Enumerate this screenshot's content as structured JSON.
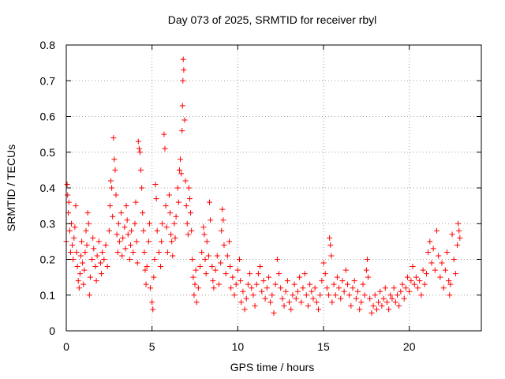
{
  "chart_data": {
    "type": "scatter",
    "title": "Day 073 of 2025, SRMTID for receiver rbyl",
    "xlabel": "GPS time / hours",
    "ylabel": "SRMTID / TECUs",
    "xlim": [
      0,
      24.2
    ],
    "ylim": [
      0,
      0.8
    ],
    "xticks": [
      0,
      5,
      10,
      15,
      20
    ],
    "xtick_labels": [
      "0",
      "5",
      "10",
      "15",
      "20"
    ],
    "yticks": [
      0,
      0.1,
      0.2,
      0.3,
      0.4,
      0.5,
      0.6,
      0.7,
      0.8
    ],
    "ytick_labels": [
      "0",
      "0.1",
      "0.2",
      "0.3",
      "0.4",
      "0.5",
      "0.6",
      "0.7",
      "0.8"
    ],
    "grid": true,
    "marker": "+",
    "color": "#ff0000",
    "series": [
      {
        "name": "SRMTID",
        "points": [
          [
            0.0,
            0.25
          ],
          [
            0.05,
            0.41
          ],
          [
            0.08,
            0.38
          ],
          [
            0.12,
            0.33
          ],
          [
            0.15,
            0.36
          ],
          [
            0.2,
            0.28
          ],
          [
            0.25,
            0.22
          ],
          [
            0.3,
            0.3
          ],
          [
            0.35,
            0.24
          ],
          [
            0.4,
            0.2
          ],
          [
            0.45,
            0.26
          ],
          [
            0.5,
            0.29
          ],
          [
            0.55,
            0.35
          ],
          [
            0.6,
            0.22
          ],
          [
            0.65,
            0.18
          ],
          [
            0.7,
            0.14
          ],
          [
            0.75,
            0.12
          ],
          [
            0.8,
            0.16
          ],
          [
            0.85,
            0.21
          ],
          [
            0.9,
            0.25
          ],
          [
            0.95,
            0.19
          ],
          [
            1.0,
            0.13
          ],
          [
            1.05,
            0.17
          ],
          [
            1.1,
            0.22
          ],
          [
            1.15,
            0.28
          ],
          [
            1.2,
            0.24
          ],
          [
            1.25,
            0.33
          ],
          [
            1.3,
            0.3
          ],
          [
            1.35,
            0.1
          ],
          [
            1.4,
            0.15
          ],
          [
            1.5,
            0.2
          ],
          [
            1.55,
            0.26
          ],
          [
            1.6,
            0.23
          ],
          [
            1.7,
            0.18
          ],
          [
            1.75,
            0.14
          ],
          [
            1.8,
            0.21
          ],
          [
            1.9,
            0.25
          ],
          [
            2.0,
            0.19
          ],
          [
            2.05,
            0.16
          ],
          [
            2.1,
            0.22
          ],
          [
            2.2,
            0.2
          ],
          [
            2.3,
            0.24
          ],
          [
            2.4,
            0.18
          ],
          [
            2.5,
            0.28
          ],
          [
            2.55,
            0.35
          ],
          [
            2.6,
            0.42
          ],
          [
            2.65,
            0.4
          ],
          [
            2.7,
            0.32
          ],
          [
            2.75,
            0.54
          ],
          [
            2.8,
            0.48
          ],
          [
            2.85,
            0.45
          ],
          [
            2.9,
            0.38
          ],
          [
            2.95,
            0.27
          ],
          [
            3.0,
            0.22
          ],
          [
            3.05,
            0.3
          ],
          [
            3.1,
            0.25
          ],
          [
            3.2,
            0.33
          ],
          [
            3.25,
            0.21
          ],
          [
            3.3,
            0.26
          ],
          [
            3.4,
            0.29
          ],
          [
            3.45,
            0.23
          ],
          [
            3.5,
            0.35
          ],
          [
            3.55,
            0.31
          ],
          [
            3.6,
            0.27
          ],
          [
            3.7,
            0.2
          ],
          [
            3.75,
            0.24
          ],
          [
            3.8,
            0.28
          ],
          [
            3.9,
            0.22
          ],
          [
            4.0,
            0.3
          ],
          [
            4.05,
            0.36
          ],
          [
            4.1,
            0.25
          ],
          [
            4.15,
            0.19
          ],
          [
            4.2,
            0.53
          ],
          [
            4.25,
            0.51
          ],
          [
            4.3,
            0.5
          ],
          [
            4.35,
            0.45
          ],
          [
            4.4,
            0.4
          ],
          [
            4.45,
            0.33
          ],
          [
            4.5,
            0.28
          ],
          [
            4.55,
            0.22
          ],
          [
            4.6,
            0.17
          ],
          [
            4.65,
            0.13
          ],
          [
            4.7,
            0.18
          ],
          [
            4.8,
            0.25
          ],
          [
            4.85,
            0.3
          ],
          [
            4.9,
            0.12
          ],
          [
            5.0,
            0.08
          ],
          [
            5.05,
            0.06
          ],
          [
            5.1,
            0.15
          ],
          [
            5.15,
            0.2
          ],
          [
            5.2,
            0.41
          ],
          [
            5.25,
            0.37
          ],
          [
            5.3,
            0.28
          ],
          [
            5.4,
            0.22
          ],
          [
            5.5,
            0.18
          ],
          [
            5.55,
            0.25
          ],
          [
            5.6,
            0.3
          ],
          [
            5.7,
            0.55
          ],
          [
            5.75,
            0.51
          ],
          [
            5.8,
            0.35
          ],
          [
            5.85,
            0.29
          ],
          [
            5.9,
            0.22
          ],
          [
            6.0,
            0.38
          ],
          [
            6.05,
            0.33
          ],
          [
            6.1,
            0.27
          ],
          [
            6.15,
            0.25
          ],
          [
            6.2,
            0.21
          ],
          [
            6.3,
            0.3
          ],
          [
            6.35,
            0.26
          ],
          [
            6.4,
            0.32
          ],
          [
            6.5,
            0.4
          ],
          [
            6.55,
            0.36
          ],
          [
            6.6,
            0.45
          ],
          [
            6.65,
            0.48
          ],
          [
            6.7,
            0.44
          ],
          [
            6.75,
            0.56
          ],
          [
            6.78,
            0.63
          ],
          [
            6.8,
            0.7
          ],
          [
            6.82,
            0.76
          ],
          [
            6.85,
            0.73
          ],
          [
            6.9,
            0.59
          ],
          [
            6.95,
            0.42
          ],
          [
            7.0,
            0.35
          ],
          [
            7.05,
            0.3
          ],
          [
            7.1,
            0.27
          ],
          [
            7.15,
            0.4
          ],
          [
            7.2,
            0.37
          ],
          [
            7.25,
            0.33
          ],
          [
            7.3,
            0.28
          ],
          [
            7.35,
            0.2
          ],
          [
            7.4,
            0.15
          ],
          [
            7.45,
            0.1
          ],
          [
            7.5,
            0.13
          ],
          [
            7.55,
            0.17
          ],
          [
            7.6,
            0.08
          ],
          [
            7.7,
            0.12
          ],
          [
            7.8,
            0.18
          ],
          [
            7.9,
            0.22
          ],
          [
            8.0,
            0.29
          ],
          [
            8.05,
            0.27
          ],
          [
            8.1,
            0.2
          ],
          [
            8.15,
            0.16
          ],
          [
            8.2,
            0.25
          ],
          [
            8.3,
            0.21
          ],
          [
            8.35,
            0.36
          ],
          [
            8.4,
            0.31
          ],
          [
            8.5,
            0.18
          ],
          [
            8.55,
            0.14
          ],
          [
            8.6,
            0.12
          ],
          [
            8.7,
            0.17
          ],
          [
            8.8,
            0.21
          ],
          [
            8.9,
            0.13
          ],
          [
            9.0,
            0.19
          ],
          [
            9.05,
            0.28
          ],
          [
            9.1,
            0.34
          ],
          [
            9.15,
            0.31
          ],
          [
            9.2,
            0.24
          ],
          [
            9.3,
            0.16
          ],
          [
            9.4,
            0.21
          ],
          [
            9.5,
            0.25
          ],
          [
            9.55,
            0.18
          ],
          [
            9.6,
            0.12
          ],
          [
            9.7,
            0.15
          ],
          [
            9.8,
            0.1
          ],
          [
            9.9,
            0.13
          ],
          [
            10.0,
            0.17
          ],
          [
            10.1,
            0.2
          ],
          [
            10.15,
            0.14
          ],
          [
            10.2,
            0.08
          ],
          [
            10.3,
            0.11
          ],
          [
            10.4,
            0.06
          ],
          [
            10.5,
            0.09
          ],
          [
            10.6,
            0.13
          ],
          [
            10.7,
            0.16
          ],
          [
            10.8,
            0.12
          ],
          [
            10.9,
            0.1
          ],
          [
            11.0,
            0.07
          ],
          [
            11.1,
            0.13
          ],
          [
            11.2,
            0.16
          ],
          [
            11.3,
            0.18
          ],
          [
            11.4,
            0.11
          ],
          [
            11.5,
            0.14
          ],
          [
            11.6,
            0.09
          ],
          [
            11.7,
            0.12
          ],
          [
            11.8,
            0.15
          ],
          [
            11.9,
            0.08
          ],
          [
            12.0,
            0.1
          ],
          [
            12.1,
            0.05
          ],
          [
            12.2,
            0.13
          ],
          [
            12.3,
            0.2
          ],
          [
            12.4,
            0.16
          ],
          [
            12.5,
            0.12
          ],
          [
            12.6,
            0.09
          ],
          [
            12.7,
            0.07
          ],
          [
            12.8,
            0.11
          ],
          [
            12.9,
            0.14
          ],
          [
            13.0,
            0.08
          ],
          [
            13.1,
            0.06
          ],
          [
            13.2,
            0.1
          ],
          [
            13.3,
            0.13
          ],
          [
            13.4,
            0.09
          ],
          [
            13.5,
            0.11
          ],
          [
            13.6,
            0.15
          ],
          [
            13.7,
            0.08
          ],
          [
            13.8,
            0.12
          ],
          [
            13.9,
            0.16
          ],
          [
            14.0,
            0.1
          ],
          [
            14.1,
            0.07
          ],
          [
            14.2,
            0.13
          ],
          [
            14.3,
            0.11
          ],
          [
            14.4,
            0.09
          ],
          [
            14.5,
            0.12
          ],
          [
            14.6,
            0.08
          ],
          [
            14.7,
            0.06
          ],
          [
            14.8,
            0.1
          ],
          [
            14.9,
            0.14
          ],
          [
            15.0,
            0.19
          ],
          [
            15.1,
            0.16
          ],
          [
            15.2,
            0.12
          ],
          [
            15.3,
            0.1
          ],
          [
            15.35,
            0.26
          ],
          [
            15.4,
            0.24
          ],
          [
            15.45,
            0.21
          ],
          [
            15.5,
            0.08
          ],
          [
            15.6,
            0.13
          ],
          [
            15.7,
            0.1
          ],
          [
            15.8,
            0.15
          ],
          [
            15.9,
            0.12
          ],
          [
            16.0,
            0.09
          ],
          [
            16.1,
            0.14
          ],
          [
            16.2,
            0.11
          ],
          [
            16.3,
            0.17
          ],
          [
            16.4,
            0.13
          ],
          [
            16.5,
            0.1
          ],
          [
            16.6,
            0.07
          ],
          [
            16.7,
            0.12
          ],
          [
            16.8,
            0.14
          ],
          [
            16.9,
            0.09
          ],
          [
            17.0,
            0.11
          ],
          [
            17.1,
            0.06
          ],
          [
            17.2,
            0.08
          ],
          [
            17.3,
            0.13
          ],
          [
            17.4,
            0.1
          ],
          [
            17.5,
            0.17
          ],
          [
            17.55,
            0.2
          ],
          [
            17.6,
            0.15
          ],
          [
            17.7,
            0.09
          ],
          [
            17.8,
            0.05
          ],
          [
            17.9,
            0.07
          ],
          [
            18.0,
            0.1
          ],
          [
            18.1,
            0.06
          ],
          [
            18.2,
            0.08
          ],
          [
            18.3,
            0.11
          ],
          [
            18.4,
            0.07
          ],
          [
            18.5,
            0.09
          ],
          [
            18.6,
            0.12
          ],
          [
            18.7,
            0.08
          ],
          [
            18.8,
            0.06
          ],
          [
            18.9,
            0.1
          ],
          [
            19.0,
            0.09
          ],
          [
            19.1,
            0.12
          ],
          [
            19.2,
            0.08
          ],
          [
            19.3,
            0.1
          ],
          [
            19.4,
            0.07
          ],
          [
            19.5,
            0.11
          ],
          [
            19.6,
            0.13
          ],
          [
            19.7,
            0.09
          ],
          [
            19.8,
            0.12
          ],
          [
            19.9,
            0.15
          ],
          [
            20.0,
            0.11
          ],
          [
            20.1,
            0.14
          ],
          [
            20.2,
            0.18
          ],
          [
            20.3,
            0.13
          ],
          [
            20.4,
            0.15
          ],
          [
            20.5,
            0.12
          ],
          [
            20.6,
            0.14
          ],
          [
            20.7,
            0.1
          ],
          [
            20.8,
            0.17
          ],
          [
            20.9,
            0.13
          ],
          [
            21.0,
            0.16
          ],
          [
            21.1,
            0.22
          ],
          [
            21.2,
            0.25
          ],
          [
            21.3,
            0.19
          ],
          [
            21.4,
            0.23
          ],
          [
            21.5,
            0.17
          ],
          [
            21.6,
            0.28
          ],
          [
            21.7,
            0.21
          ],
          [
            21.8,
            0.15
          ],
          [
            21.9,
            0.19
          ],
          [
            22.0,
            0.12
          ],
          [
            22.1,
            0.17
          ],
          [
            22.2,
            0.22
          ],
          [
            22.3,
            0.14
          ],
          [
            22.35,
            0.1
          ],
          [
            22.4,
            0.13
          ],
          [
            22.5,
            0.27
          ],
          [
            22.6,
            0.2
          ],
          [
            22.7,
            0.16
          ],
          [
            22.8,
            0.24
          ],
          [
            22.85,
            0.3
          ],
          [
            22.9,
            0.28
          ],
          [
            22.95,
            0.26
          ]
        ]
      }
    ]
  }
}
